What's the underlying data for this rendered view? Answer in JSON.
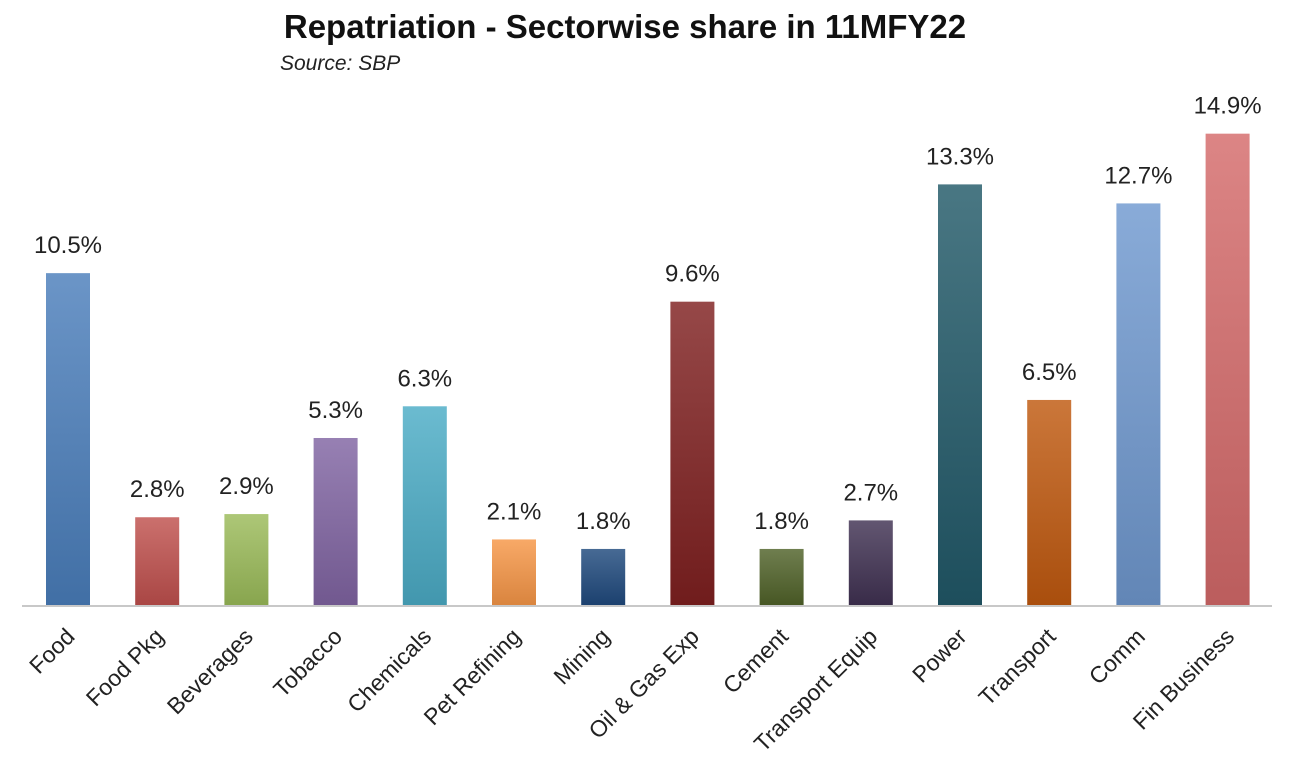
{
  "chart_data": {
    "type": "bar",
    "title": "Repatriation - Sectorwise share in 11MFY22",
    "subtitle": "Source: SBP",
    "xlabel": "",
    "ylabel": "",
    "grid": false,
    "categories": [
      "Food",
      "Food Pkg",
      "Beverages",
      "Tobacco",
      "Chemicals",
      "Pet Refining",
      "Mining",
      "Oil & Gas Exp",
      "Cement",
      "Transport Equip",
      "Power",
      "Transport",
      "Comm",
      "Fin Business"
    ],
    "values": [
      10.5,
      2.8,
      2.9,
      5.3,
      6.3,
      2.1,
      1.8,
      9.6,
      1.8,
      2.7,
      13.3,
      6.5,
      12.7,
      14.9
    ],
    "data_labels": [
      "10.5%",
      "2.8%",
      "2.9%",
      "5.3%",
      "6.3%",
      "2.1%",
      "1.8%",
      "9.6%",
      "1.8%",
      "2.7%",
      "13.3%",
      "6.5%",
      "12.7%",
      "14.9%"
    ],
    "colors": [
      "#4a7ebb",
      "#c0504d",
      "#9bbb59",
      "#8064a2",
      "#4bacc6",
      "#f79646",
      "#1f497d",
      "#7f2020",
      "#4f6228",
      "#403152",
      "#215968",
      "#c0590f",
      "#6f98cf",
      "#d46a6a"
    ]
  }
}
